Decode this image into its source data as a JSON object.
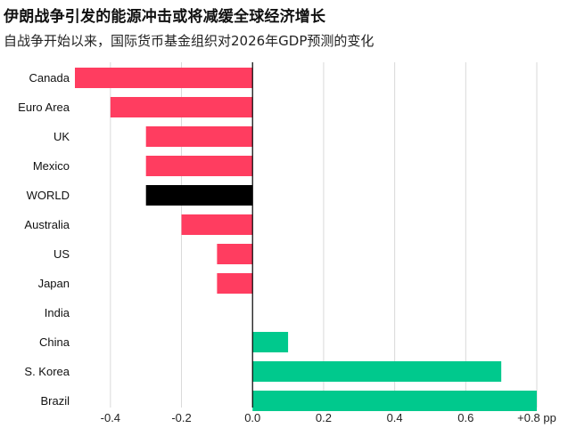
{
  "header": {
    "title": "伊朗战争引发的能源冲击或将减缓全球经济增长",
    "subtitle": "自战争开始以来，国际货币基金组织对2026年GDP预测的变化"
  },
  "chart_data": {
    "type": "bar",
    "orientation": "horizontal",
    "categories": [
      "Canada",
      "Euro Area",
      "UK",
      "Mexico",
      "WORLD",
      "Australia",
      "US",
      "Japan",
      "India",
      "China",
      "S. Korea",
      "Brazil"
    ],
    "values": [
      -0.5,
      -0.4,
      -0.3,
      -0.3,
      -0.3,
      -0.2,
      -0.1,
      -0.1,
      0.0,
      0.1,
      0.7,
      0.8
    ],
    "highlight_category": "WORLD",
    "xlim": [
      -0.5,
      0.8
    ],
    "x_ticks": [
      -0.4,
      -0.2,
      0.0,
      0.2,
      0.4,
      0.6,
      0.8
    ],
    "x_tick_labels": [
      "-0.4",
      "-0.2",
      "0.0",
      "0.2",
      "0.4",
      "0.6",
      "+0.8 pp"
    ],
    "grid": "vertical",
    "colors": {
      "negative": "#ff3d60",
      "positive": "#00c98d",
      "highlight": "#000000",
      "grid": "#d9d9d9",
      "zero_line": "#000000"
    }
  }
}
